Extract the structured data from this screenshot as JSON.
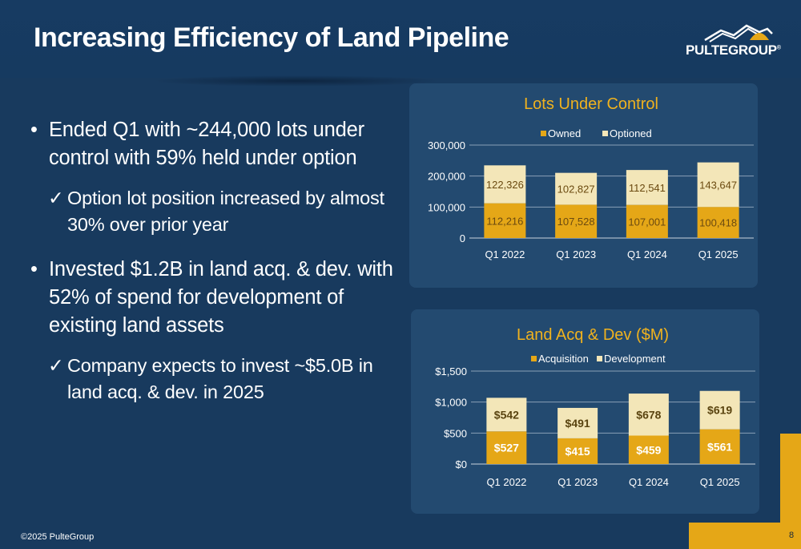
{
  "slide": {
    "title": "Increasing Efficiency of Land Pipeline",
    "logo_text": "PULTEGROUP",
    "logo_mark": "®",
    "footer": "©2025 PulteGroup",
    "page_number": "8"
  },
  "bullets": [
    {
      "text": "Ended Q1 with ~244,000 lots under control with 59% held under option",
      "sub": "Option lot position increased by almost 30% over prior year"
    },
    {
      "text": "Invested $1.2B in land acq. & dev. with 52% of spend for development of existing land assets",
      "sub": "Company expects to invest ~$5.0B in land acq. & dev. in 2025"
    }
  ],
  "symbols": {
    "bullet": "•",
    "check": "✓"
  },
  "colors": {
    "background": "#183a5e",
    "panel": "#234a70",
    "gold": "#e5a717",
    "cream": "#f3e6b8",
    "chart_title": "#f0b21e"
  },
  "chart_data": [
    {
      "type": "bar",
      "stacked": true,
      "title": "Lots Under Control",
      "categories": [
        "Q1 2022",
        "Q1 2023",
        "Q1 2024",
        "Q1 2025"
      ],
      "series": [
        {
          "name": "Owned",
          "values": [
            112216,
            107528,
            107001,
            100418
          ],
          "labels": [
            "112,216",
            "107,528",
            "107,001",
            "100,418"
          ],
          "color": "#e5a717"
        },
        {
          "name": "Optioned",
          "values": [
            122326,
            102827,
            112541,
            143647
          ],
          "labels": [
            "122,326",
            "102,827",
            "112,541",
            "143,647"
          ],
          "color": "#f3e6b8"
        }
      ],
      "ylim": [
        0,
        300000
      ],
      "yticks": [
        0,
        100000,
        200000,
        300000
      ],
      "ytick_labels": [
        "0",
        "100,000",
        "200,000",
        "300,000"
      ],
      "grid": true,
      "legend": "top-center"
    },
    {
      "type": "bar",
      "stacked": true,
      "title": "Land Acq & Dev ($M)",
      "categories": [
        "Q1 2022",
        "Q1 2023",
        "Q1 2024",
        "Q1 2025"
      ],
      "series": [
        {
          "name": "Acquisition",
          "values": [
            527,
            415,
            459,
            561
          ],
          "labels": [
            "$527",
            "$415",
            "$459",
            "$561"
          ],
          "color": "#e5a717"
        },
        {
          "name": "Development",
          "values": [
            542,
            491,
            678,
            619
          ],
          "labels": [
            "$542",
            "$491",
            "$678",
            "$619"
          ],
          "color": "#f3e6b8"
        }
      ],
      "ylim": [
        0,
        1500
      ],
      "yticks": [
        0,
        500,
        1000,
        1500
      ],
      "ytick_labels": [
        "$0",
        "$500",
        "$1,000",
        "$1,500"
      ],
      "grid": true,
      "legend": "top-center"
    }
  ]
}
